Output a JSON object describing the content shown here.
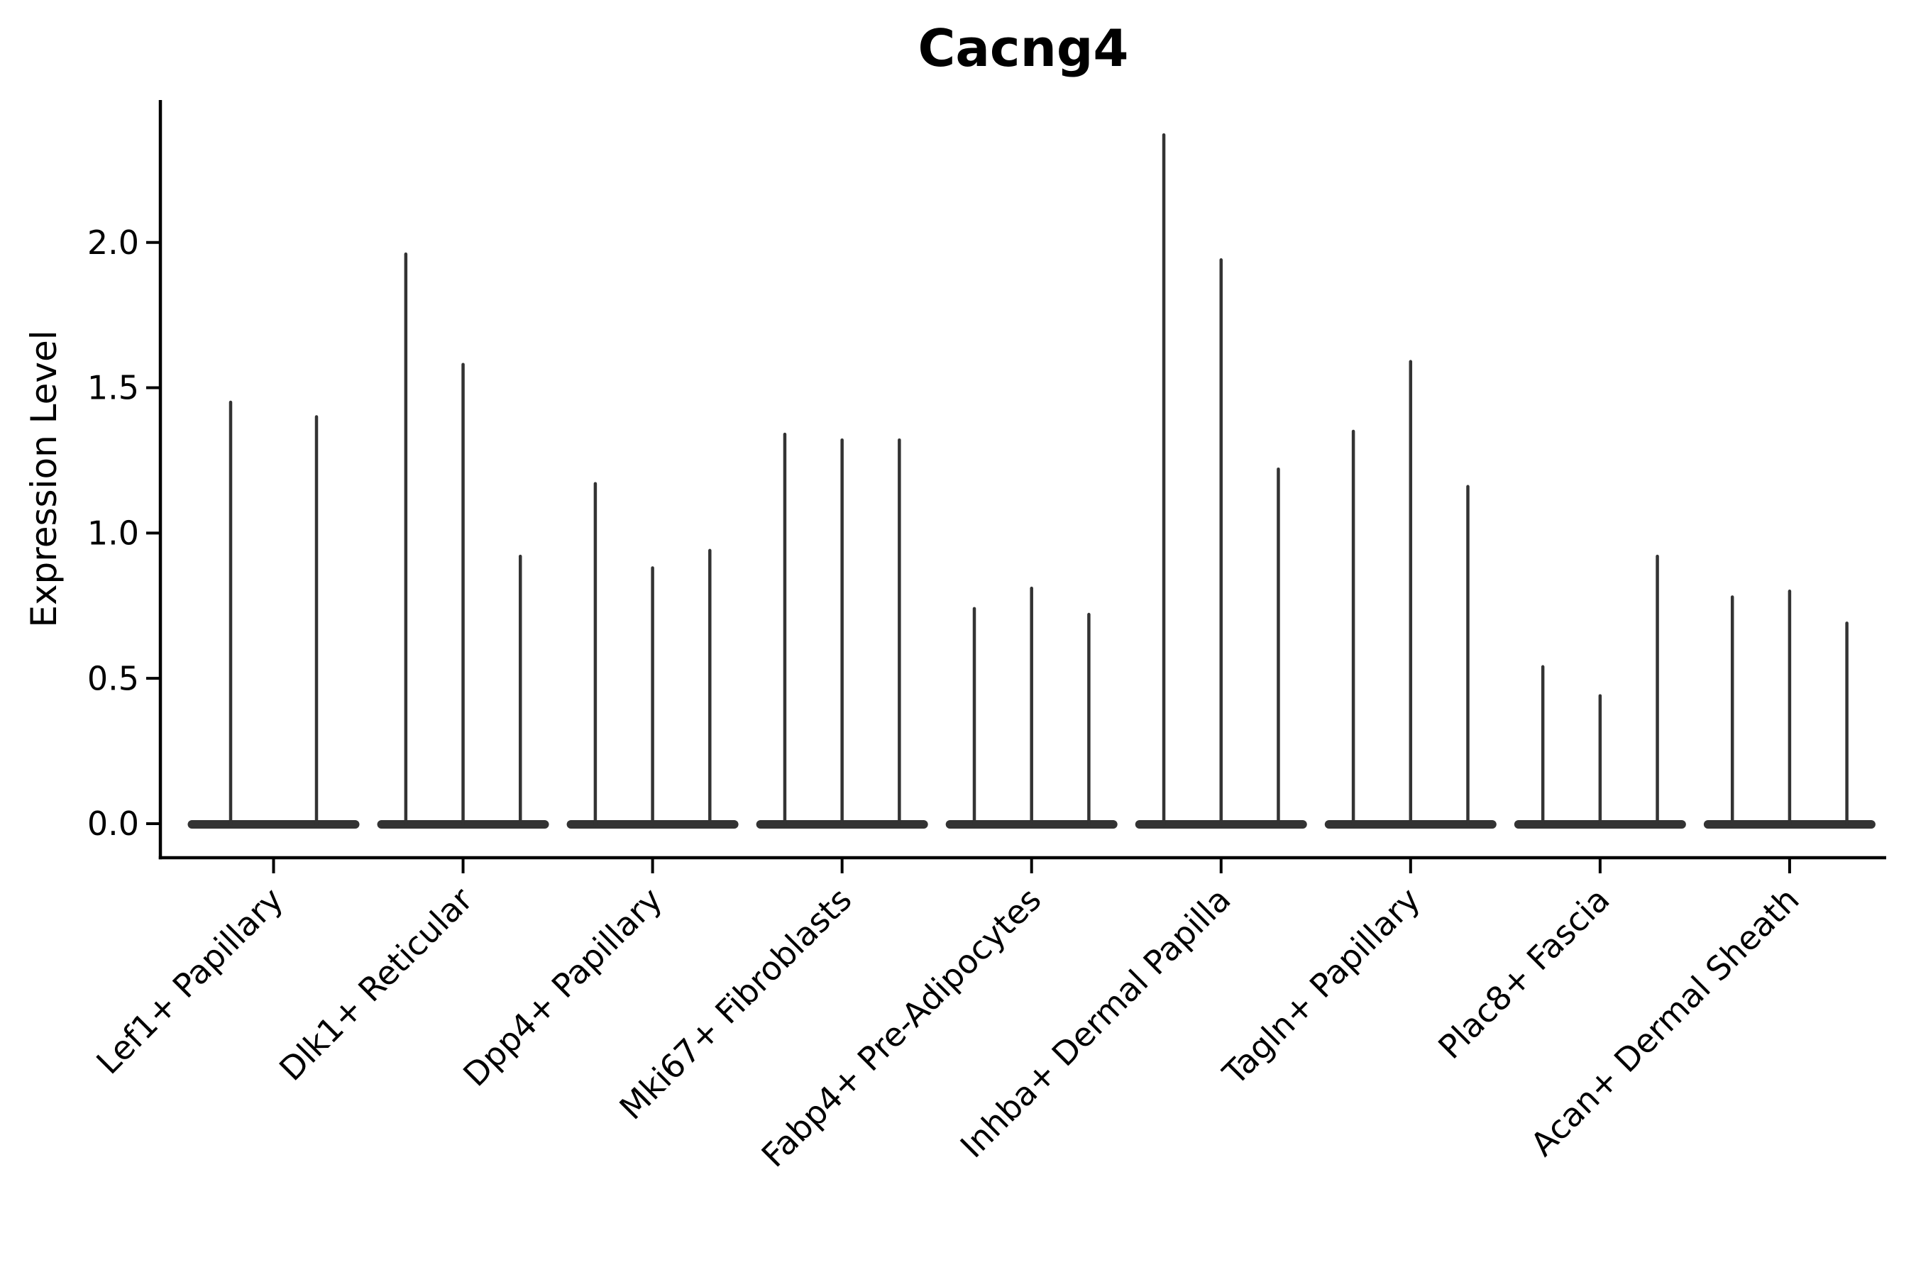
{
  "figure": {
    "background": "#ffffff"
  },
  "chart_data": {
    "type": "violin",
    "title": "Cacng4",
    "xlabel": "",
    "ylabel": "Expression Level",
    "y_ticks": [
      0.0,
      0.5,
      1.0,
      1.5,
      2.0
    ],
    "y_tick_labels": [
      "0.0",
      "0.5",
      "1.0",
      "1.5",
      "2.0"
    ],
    "ylim": [
      -0.12,
      2.49
    ],
    "grid": false,
    "legend_position": "none",
    "x_tick_rotation_deg": 45,
    "note": "Thin violin plot; each category holds narrow violins whose mass sits at 0 (flat base bar) with a thin spike rising to the per-violin maximum expression value.",
    "categories": [
      "Lef1+ Papillary",
      "Dlk1+ Reticular",
      "Dpp4+ Papillary",
      "Mki67+ Fibroblasts",
      "Fabp4+ Pre-Adipocytes",
      "Inhba+ Dermal Papilla",
      "Tagln+ Papillary",
      "Plac8+ Fascia",
      "Acan+ Dermal Sheath"
    ],
    "series": [
      {
        "name": "Lef1+ Papillary",
        "values": [
          1.45,
          1.4
        ]
      },
      {
        "name": "Dlk1+ Reticular",
        "values": [
          1.96,
          1.58,
          0.92
        ]
      },
      {
        "name": "Dpp4+ Papillary",
        "values": [
          1.17,
          0.88,
          0.94
        ]
      },
      {
        "name": "Mki67+ Fibroblasts",
        "values": [
          1.34,
          1.32,
          1.32
        ]
      },
      {
        "name": "Fabp4+ Pre-Adipocytes",
        "values": [
          0.74,
          0.81,
          0.72
        ]
      },
      {
        "name": "Inhba+ Dermal Papilla",
        "values": [
          2.37,
          1.94,
          1.22
        ]
      },
      {
        "name": "Tagln+ Papillary",
        "values": [
          1.35,
          1.59,
          1.16
        ]
      },
      {
        "name": "Plac8+ Fascia",
        "values": [
          0.54,
          0.44,
          0.92
        ]
      },
      {
        "name": "Acan+ Dermal Sheath",
        "values": [
          0.78,
          0.8,
          0.69
        ]
      }
    ],
    "colors": {
      "violin": "#333333",
      "axis": "#000000",
      "text": "#000000"
    }
  }
}
